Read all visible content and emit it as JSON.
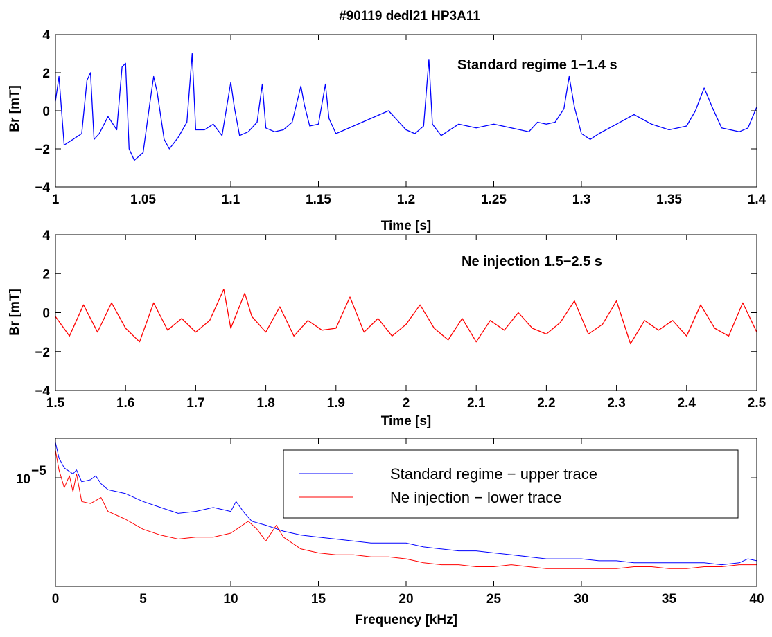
{
  "figure_title": "#90119 dedl21 HP3A11",
  "colors": {
    "blue": "#0000ff",
    "red": "#ff0000",
    "axis": "#000000"
  },
  "chart_data": [
    {
      "type": "line",
      "panel": "top",
      "title": "",
      "xlabel": "Time [s]",
      "ylabel": "Br [mT]",
      "xlim": [
        1,
        1.4
      ],
      "ylim": [
        -4,
        4
      ],
      "xticks": [
        1,
        1.05,
        1.1,
        1.15,
        1.2,
        1.25,
        1.3,
        1.35,
        1.4
      ],
      "xtick_labels": [
        "1",
        "1.05",
        "1.1",
        "1.15",
        "1.2",
        "1.25",
        "1.3",
        "1.35",
        "1.4"
      ],
      "yticks": [
        -4,
        -2,
        0,
        2,
        4
      ],
      "ytick_labels": [
        "−4",
        "−2",
        "0",
        "2",
        "4"
      ],
      "annotation": "Standard regime 1−1.4 s",
      "series": [
        {
          "color": "#0000ff",
          "x": [
            1.0,
            1.002,
            1.005,
            1.01,
            1.015,
            1.018,
            1.02,
            1.022,
            1.025,
            1.03,
            1.035,
            1.038,
            1.04,
            1.042,
            1.045,
            1.05,
            1.054,
            1.056,
            1.058,
            1.062,
            1.065,
            1.07,
            1.075,
            1.078,
            1.08,
            1.085,
            1.09,
            1.095,
            1.1,
            1.102,
            1.105,
            1.11,
            1.115,
            1.118,
            1.12,
            1.125,
            1.13,
            1.135,
            1.14,
            1.142,
            1.145,
            1.15,
            1.154,
            1.156,
            1.16,
            1.165,
            1.17,
            1.18,
            1.19,
            1.195,
            1.2,
            1.205,
            1.21,
            1.213,
            1.215,
            1.22,
            1.23,
            1.24,
            1.25,
            1.26,
            1.27,
            1.275,
            1.28,
            1.285,
            1.29,
            1.293,
            1.296,
            1.3,
            1.305,
            1.31,
            1.32,
            1.33,
            1.34,
            1.35,
            1.36,
            1.365,
            1.37,
            1.375,
            1.38,
            1.39,
            1.395,
            1.4
          ],
          "y": [
            0.5,
            1.8,
            -1.8,
            -1.5,
            -1.2,
            1.6,
            2.0,
            -1.5,
            -1.2,
            -0.3,
            -1.0,
            2.3,
            2.5,
            -2.0,
            -2.6,
            -2.2,
            0.5,
            1.8,
            1.0,
            -1.5,
            -2.0,
            -1.4,
            -0.6,
            3.0,
            -1.0,
            -1.0,
            -0.7,
            -1.3,
            1.5,
            0.2,
            -1.3,
            -1.1,
            -0.6,
            1.4,
            -0.9,
            -1.1,
            -1.0,
            -0.6,
            1.3,
            0.3,
            -0.8,
            -0.7,
            1.4,
            -0.4,
            -1.2,
            -1.0,
            -0.8,
            -0.4,
            0.0,
            -0.5,
            -1.0,
            -1.2,
            -0.8,
            2.7,
            -0.7,
            -1.3,
            -0.7,
            -0.9,
            -0.7,
            -0.9,
            -1.1,
            -0.6,
            -0.7,
            -0.6,
            0.1,
            1.8,
            0.2,
            -1.2,
            -1.5,
            -1.2,
            -0.7,
            -0.2,
            -0.7,
            -1.0,
            -0.8,
            0.0,
            1.2,
            0.1,
            -0.9,
            -1.1,
            -0.9,
            0.2
          ]
        }
      ]
    },
    {
      "type": "line",
      "panel": "middle",
      "title": "",
      "xlabel": "Time [s]",
      "ylabel": "Br [mT]",
      "xlim": [
        1.5,
        2.5
      ],
      "ylim": [
        -4,
        4
      ],
      "xticks": [
        1.5,
        1.6,
        1.7,
        1.8,
        1.9,
        2.0,
        2.1,
        2.2,
        2.3,
        2.4,
        2.5
      ],
      "xtick_labels": [
        "1.5",
        "1.6",
        "1.7",
        "1.8",
        "1.9",
        "2",
        "2.1",
        "2.2",
        "2.3",
        "2.4",
        "2.5"
      ],
      "yticks": [
        -4,
        -2,
        0,
        2,
        4
      ],
      "ytick_labels": [
        "−4",
        "−2",
        "0",
        "2",
        "4"
      ],
      "annotation": "Ne injection 1.5−2.5 s",
      "series": [
        {
          "color": "#ff0000",
          "x": [
            1.5,
            1.52,
            1.54,
            1.56,
            1.58,
            1.6,
            1.62,
            1.64,
            1.66,
            1.68,
            1.7,
            1.72,
            1.74,
            1.75,
            1.77,
            1.78,
            1.8,
            1.82,
            1.84,
            1.86,
            1.88,
            1.9,
            1.92,
            1.94,
            1.96,
            1.98,
            2.0,
            2.02,
            2.04,
            2.06,
            2.08,
            2.1,
            2.12,
            2.14,
            2.16,
            2.18,
            2.2,
            2.22,
            2.24,
            2.26,
            2.28,
            2.3,
            2.32,
            2.34,
            2.36,
            2.38,
            2.4,
            2.42,
            2.44,
            2.46,
            2.48,
            2.5
          ],
          "y": [
            -0.2,
            -1.2,
            0.4,
            -1.0,
            0.5,
            -0.8,
            -1.5,
            0.5,
            -0.9,
            -0.3,
            -1.0,
            -0.4,
            1.2,
            -0.8,
            1.0,
            -0.2,
            -1.0,
            0.3,
            -1.2,
            -0.4,
            -0.9,
            -0.8,
            0.8,
            -1.0,
            -0.3,
            -1.2,
            -0.6,
            0.4,
            -0.8,
            -1.4,
            -0.3,
            -1.5,
            -0.4,
            -0.9,
            0.0,
            -0.8,
            -1.1,
            -0.5,
            0.6,
            -1.1,
            -0.6,
            0.6,
            -1.6,
            -0.4,
            -0.9,
            -0.4,
            -1.2,
            0.4,
            -0.8,
            -1.2,
            0.5,
            -1.0
          ]
        }
      ]
    },
    {
      "type": "line",
      "panel": "bottom",
      "title": "",
      "xlabel": "Frequency [kHz]",
      "ylabel": "",
      "yscale": "log",
      "xlim": [
        0,
        40
      ],
      "ylim_log10": [
        -5.55,
        -4.8
      ],
      "xticks": [
        0,
        5,
        10,
        15,
        20,
        25,
        30,
        35,
        40
      ],
      "xtick_labels": [
        "0",
        "5",
        "10",
        "15",
        "20",
        "25",
        "30",
        "35",
        "40"
      ],
      "ytick_log10": [
        -5
      ],
      "ytick_base": "10",
      "ytick_exponent": "−5",
      "legend_position": "top-right",
      "series": [
        {
          "name": "Standard regime − upper trace",
          "color": "#0000ff",
          "x": [
            0,
            0.2,
            0.5,
            1.0,
            1.2,
            1.5,
            2.0,
            2.3,
            2.6,
            3,
            4,
            5,
            6,
            7,
            8,
            9,
            10,
            10.3,
            10.8,
            11.2,
            12,
            13,
            14,
            15,
            16,
            17,
            18,
            19,
            20,
            21,
            22,
            23,
            24,
            25,
            26,
            27,
            28,
            29,
            30,
            31,
            32,
            33,
            34,
            35,
            36,
            37,
            38,
            39,
            39.5,
            40
          ],
          "y_log10": [
            -4.82,
            -4.9,
            -4.95,
            -4.98,
            -4.96,
            -5.02,
            -5.01,
            -4.99,
            -5.03,
            -5.06,
            -5.08,
            -5.12,
            -5.15,
            -5.18,
            -5.17,
            -5.15,
            -5.17,
            -5.12,
            -5.18,
            -5.22,
            -5.24,
            -5.27,
            -5.29,
            -5.3,
            -5.31,
            -5.32,
            -5.33,
            -5.33,
            -5.33,
            -5.35,
            -5.36,
            -5.37,
            -5.37,
            -5.38,
            -5.39,
            -5.4,
            -5.41,
            -5.41,
            -5.41,
            -5.42,
            -5.42,
            -5.43,
            -5.43,
            -5.43,
            -5.43,
            -5.43,
            -5.44,
            -5.43,
            -5.41,
            -5.42
          ]
        },
        {
          "name": "Ne injection − lower trace",
          "color": "#ff0000",
          "x": [
            0,
            0.2,
            0.5,
            0.8,
            1.0,
            1.2,
            1.5,
            2.0,
            2.6,
            3,
            4,
            5,
            6,
            7,
            8,
            9,
            10,
            11,
            11.5,
            12,
            12.6,
            13,
            14,
            15,
            16,
            17,
            18,
            19,
            20,
            21,
            22,
            23,
            24,
            25,
            26,
            27,
            28,
            29,
            30,
            31,
            32,
            33,
            34,
            35,
            36,
            37,
            38,
            39,
            40
          ],
          "y_log10": [
            -4.86,
            -4.96,
            -5.05,
            -4.99,
            -5.07,
            -4.98,
            -5.12,
            -5.13,
            -5.1,
            -5.17,
            -5.21,
            -5.26,
            -5.29,
            -5.31,
            -5.3,
            -5.3,
            -5.28,
            -5.22,
            -5.26,
            -5.32,
            -5.24,
            -5.3,
            -5.36,
            -5.38,
            -5.39,
            -5.39,
            -5.4,
            -5.4,
            -5.41,
            -5.43,
            -5.44,
            -5.44,
            -5.45,
            -5.45,
            -5.44,
            -5.45,
            -5.46,
            -5.46,
            -5.46,
            -5.46,
            -5.46,
            -5.45,
            -5.45,
            -5.46,
            -5.46,
            -5.45,
            -5.45,
            -5.44,
            -5.44
          ]
        }
      ]
    }
  ]
}
